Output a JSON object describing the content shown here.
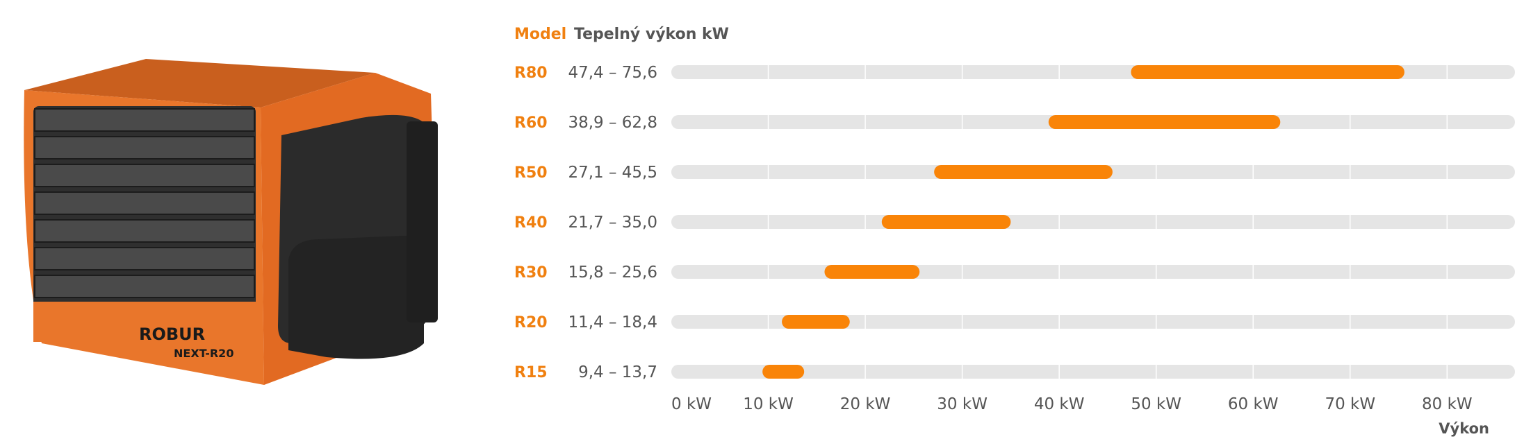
{
  "product": {
    "brand": "ROBUR",
    "model_plate": "NEXT-R20",
    "colors": {
      "body": "#e9762b",
      "louver": "#3a3a3a",
      "housing": "#2b2b2b"
    }
  },
  "chart_data": {
    "type": "range-bar",
    "header": {
      "model": "Model",
      "power": "Tepelný výkon kW"
    },
    "rows": [
      {
        "model": "R80",
        "range_label": "47,4 – 75,6",
        "min": 47.4,
        "max": 75.6
      },
      {
        "model": "R60",
        "range_label": "38,9 – 62,8",
        "min": 38.9,
        "max": 62.8
      },
      {
        "model": "R50",
        "range_label": "27,1 – 45,5",
        "min": 27.1,
        "max": 45.5
      },
      {
        "model": "R40",
        "range_label": "21,7 – 35,0",
        "min": 21.7,
        "max": 35.0
      },
      {
        "model": "R30",
        "range_label": "15,8 – 25,6",
        "min": 15.8,
        "max": 25.6
      },
      {
        "model": "R20",
        "range_label": "11,4 – 18,4",
        "min": 11.4,
        "max": 18.4
      },
      {
        "model": "R15",
        "range_label": "9,4 – 13,7",
        "min": 9.4,
        "max": 13.7
      }
    ],
    "x_ticks": [
      {
        "value": 0,
        "label": "0 kW"
      },
      {
        "value": 10,
        "label": "10 kW"
      },
      {
        "value": 20,
        "label": "20 kW"
      },
      {
        "value": 30,
        "label": "30 kW"
      },
      {
        "value": 40,
        "label": "40 kW"
      },
      {
        "value": 50,
        "label": "50 kW"
      },
      {
        "value": 60,
        "label": "60 kW"
      },
      {
        "value": 70,
        "label": "70 kW"
      },
      {
        "value": 80,
        "label": "80 kW"
      }
    ],
    "xlim": [
      0,
      87
    ],
    "xlabel": "Výkon",
    "grid": true,
    "colors": {
      "bar": "#f98408",
      "track": "#e5e5e5",
      "grid": "#ffffff"
    }
  }
}
